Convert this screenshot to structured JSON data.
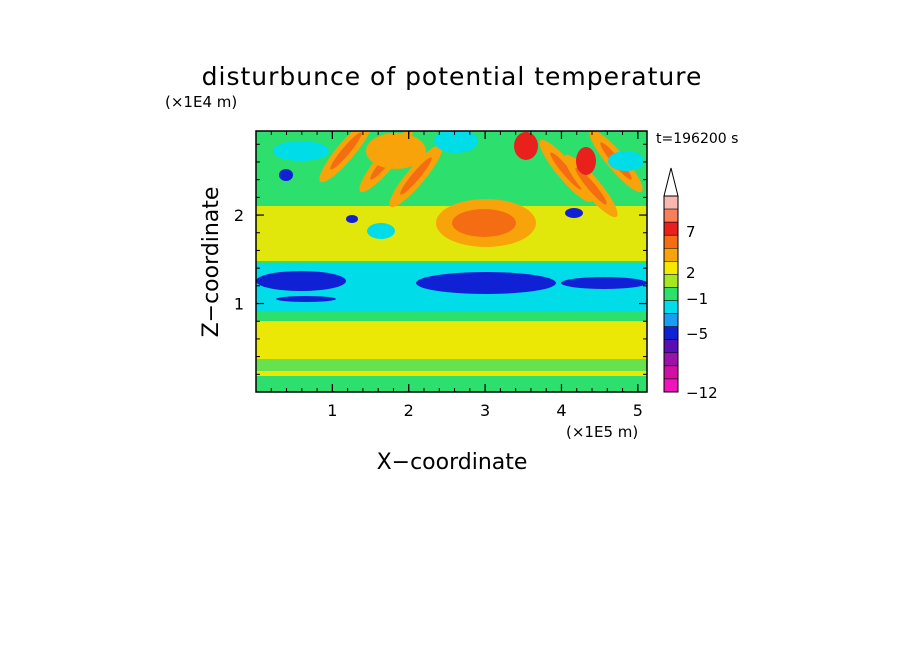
{
  "chart_data": {
    "type": "heatmap",
    "title": "disturbunce of potential temperature",
    "xlabel": "X−coordinate",
    "ylabel": "Z−coordinate",
    "x_unit": "(×1E5 m)",
    "y_unit": "(×1E4 m)",
    "time_label": "t=196200 s",
    "xlim": [
      0,
      5.12
    ],
    "ylim": [
      0,
      2.95
    ],
    "x_ticks": [
      "1",
      "2",
      "3",
      "4",
      "5"
    ],
    "y_ticks": [
      "1",
      "2"
    ],
    "grid": false,
    "colorbar": {
      "labels": [
        "7",
        "2",
        "−1",
        "−5",
        "−12"
      ],
      "colors_top_to_bottom": [
        "#f9b7b0",
        "#f77f5a",
        "#e9201c",
        "#f56d12",
        "#f8a30a",
        "#f6e800",
        "#a6e820",
        "#2de06e",
        "#00dde8",
        "#1a9df0",
        "#1020d4",
        "#5a0fb4",
        "#9a12a8",
        "#d20ea4",
        "#f015b8"
      ],
      "extend_top": true
    },
    "colors": {
      "background_level": "#2de06e",
      "band_low": "#f6e800",
      "band_blue": "#1020d4",
      "band_cyan": "#00dde8",
      "warm_orange": "#f56d12",
      "warm_red": "#e9201c"
    }
  }
}
